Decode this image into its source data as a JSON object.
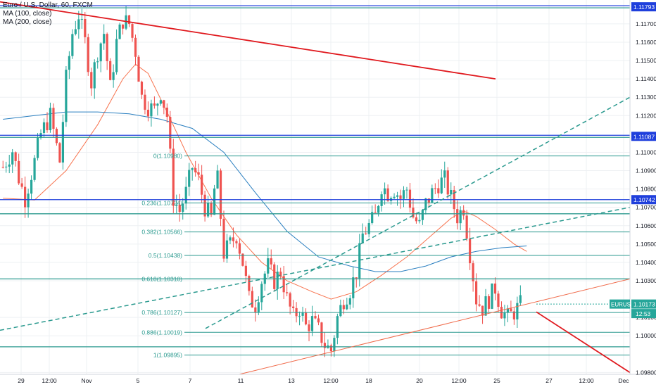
{
  "legend": {
    "symbol": "Euro / U.S. Dollar, 60, FXCM",
    "ma100": "MA (100, close)",
    "ma200": "MA (200, close)"
  },
  "colors": {
    "up": "#26a69a",
    "down": "#ef5350",
    "ma100": "#f7734e",
    "ma200": "#2a7fc0",
    "trend_red": "#e0191e",
    "hline_blue": "#1f3fdc",
    "fib": "#2b9a8f",
    "dashed_channel": "#2b9a8f",
    "price_badge": "#26a69a",
    "grid": "#eef0f3",
    "axis_text": "#131722"
  },
  "chart_data": {
    "type": "candlestick",
    "title": "Euro / U.S. Dollar, 60, FXCM",
    "symbol": "EURUSD",
    "timeframe": "60",
    "ylim": [
      1.0979,
      1.1183
    ],
    "x_ticks": [
      "29",
      "12:00",
      "Nov",
      "5",
      "7",
      "11",
      "13",
      "12:00",
      "18",
      "20",
      "12:00",
      "25",
      "27",
      "12:00",
      "Dec"
    ],
    "y_ticks": [
      "1.11700",
      "1.11600",
      "1.11500",
      "1.11400",
      "1.11300",
      "1.11200",
      "1.11000",
      "1.10900",
      "1.10800",
      "1.10700",
      "1.10600",
      "1.10500",
      "1.10400",
      "1.10300",
      "1.10100",
      "1.10000",
      "1.09800"
    ],
    "y_tick_values": [
      1.117,
      1.116,
      1.115,
      1.114,
      1.113,
      1.112,
      1.11,
      1.109,
      1.108,
      1.107,
      1.106,
      1.105,
      1.104,
      1.103,
      1.101,
      1.1,
      1.098
    ],
    "price_waypoints": [
      [
        0,
        1.1092
      ],
      [
        3,
        1.1101
      ],
      [
        5,
        1.1086
      ],
      [
        7,
        1.1075
      ],
      [
        10,
        1.1095
      ],
      [
        12,
        1.111
      ],
      [
        15,
        1.112
      ],
      [
        18,
        1.1095
      ],
      [
        20,
        1.114
      ],
      [
        22,
        1.1165
      ],
      [
        24,
        1.1175
      ],
      [
        26,
        1.116
      ],
      [
        28,
        1.1138
      ],
      [
        30,
        1.1155
      ],
      [
        32,
        1.1165
      ],
      [
        34,
        1.1135
      ],
      [
        36,
        1.116
      ],
      [
        38,
        1.1172
      ],
      [
        40,
        1.117
      ],
      [
        42,
        1.1155
      ],
      [
        44,
        1.113
      ],
      [
        46,
        1.1125
      ],
      [
        48,
        1.1123
      ],
      [
        50,
        1.1133
      ],
      [
        52,
        1.112
      ],
      [
        54,
        1.1075
      ],
      [
        56,
        1.1068
      ],
      [
        58,
        1.1078
      ],
      [
        60,
        1.1092
      ],
      [
        62,
        1.1085
      ],
      [
        64,
        1.107
      ],
      [
        66,
        1.1064
      ],
      [
        67,
        1.108
      ],
      [
        68,
        1.1085
      ],
      [
        70,
        1.1045
      ],
      [
        72,
        1.105
      ],
      [
        74,
        1.1055
      ],
      [
        76,
        1.104
      ],
      [
        78,
        1.102
      ],
      [
        80,
        1.1017
      ],
      [
        82,
        1.103
      ],
      [
        84,
        1.1038
      ],
      [
        86,
        1.103
      ],
      [
        88,
        1.1035
      ],
      [
        90,
        1.102
      ],
      [
        92,
        1.101
      ],
      [
        94,
        1.1015
      ],
      [
        96,
        1.1005
      ],
      [
        98,
        1.1008
      ],
      [
        100,
        1.1003
      ],
      [
        102,
        1.0995
      ],
      [
        104,
        1.0992
      ],
      [
        106,
        1.101
      ],
      [
        108,
        1.102
      ],
      [
        110,
        1.1025
      ],
      [
        112,
        1.1035
      ],
      [
        114,
        1.1055
      ],
      [
        116,
        1.106
      ],
      [
        118,
        1.1065
      ],
      [
        120,
        1.1082
      ],
      [
        122,
        1.1078
      ],
      [
        124,
        1.108
      ],
      [
        126,
        1.1075
      ],
      [
        128,
        1.108
      ],
      [
        130,
        1.1065
      ],
      [
        132,
        1.106
      ],
      [
        134,
        1.1072
      ],
      [
        136,
        1.1078
      ],
      [
        138,
        1.1083
      ],
      [
        140,
        1.1085
      ],
      [
        142,
        1.1075
      ],
      [
        144,
        1.1065
      ],
      [
        146,
        1.107
      ],
      [
        148,
        1.1045
      ],
      [
        150,
        1.102
      ],
      [
        152,
        1.1015
      ],
      [
        154,
        1.102
      ],
      [
        156,
        1.1026
      ],
      [
        158,
        1.1014
      ],
      [
        160,
        1.101
      ],
      [
        162,
        1.1013
      ],
      [
        164,
        1.1017
      ]
    ],
    "ma100_points": [
      [
        0,
        1.1075
      ],
      [
        10,
        1.1074
      ],
      [
        20,
        1.109
      ],
      [
        30,
        1.1115
      ],
      [
        38,
        1.114
      ],
      [
        42,
        1.1148
      ],
      [
        46,
        1.1143
      ],
      [
        52,
        1.1122
      ],
      [
        58,
        1.11
      ],
      [
        66,
        1.1075
      ],
      [
        74,
        1.1055
      ],
      [
        82,
        1.104
      ],
      [
        90,
        1.103
      ],
      [
        98,
        1.1024
      ],
      [
        104,
        1.102
      ],
      [
        112,
        1.1024
      ],
      [
        120,
        1.1033
      ],
      [
        128,
        1.1043
      ],
      [
        136,
        1.1055
      ],
      [
        142,
        1.1064
      ],
      [
        146,
        1.1068
      ],
      [
        150,
        1.1065
      ],
      [
        156,
        1.1058
      ],
      [
        162,
        1.105
      ],
      [
        166,
        1.1046
      ]
    ],
    "ma200_points": [
      [
        0,
        1.1118
      ],
      [
        10,
        1.112
      ],
      [
        20,
        1.1122
      ],
      [
        30,
        1.1122
      ],
      [
        40,
        1.1121
      ],
      [
        50,
        1.1118
      ],
      [
        60,
        1.1113
      ],
      [
        70,
        1.11
      ],
      [
        80,
        1.1078
      ],
      [
        90,
        1.1057
      ],
      [
        100,
        1.1043
      ],
      [
        110,
        1.1038
      ],
      [
        118,
        1.1035
      ],
      [
        126,
        1.1035
      ],
      [
        134,
        1.1038
      ],
      [
        142,
        1.1043
      ],
      [
        150,
        1.1046
      ],
      [
        158,
        1.1048
      ],
      [
        166,
        1.1049
      ]
    ],
    "fib_levels": [
      {
        "ratio": "0",
        "price": 1.1098,
        "label": "0(1.10980)"
      },
      {
        "ratio": "0.236",
        "price": 1.10724,
        "label": "0.236(1.10724)"
      },
      {
        "ratio": "0.382",
        "price": 1.10566,
        "label": "0.382(1.10566)"
      },
      {
        "ratio": "0.5",
        "price": 1.10438,
        "label": "0.5(1.10438)"
      },
      {
        "ratio": "0.618",
        "price": 1.1031,
        "label": "0.618(1.10310)"
      },
      {
        "ratio": "0.786",
        "price": 1.10127,
        "label": "0.786(1.10127)"
      },
      {
        "ratio": "0.886",
        "price": 1.10019,
        "label": "0.886(1.10019)"
      },
      {
        "ratio": "1",
        "price": 1.09895,
        "label": "1(1.09895)"
      }
    ],
    "horizontal_lines": [
      {
        "price": 1.11793,
        "label": "1.11793",
        "style": "double"
      },
      {
        "price": 1.11087,
        "label": "1.11087",
        "style": "double"
      },
      {
        "price": 1.10742,
        "label": "1.10742",
        "style": "single"
      },
      {
        "price": 1.10665,
        "style": "teal"
      },
      {
        "price": 1.1031,
        "style": "teal"
      },
      {
        "price": 1.0994,
        "style": "teal"
      }
    ],
    "current_price": {
      "symbol": "EURUSD",
      "value": "1.10173",
      "countdown": "12:53",
      "price": 1.10173
    }
  }
}
